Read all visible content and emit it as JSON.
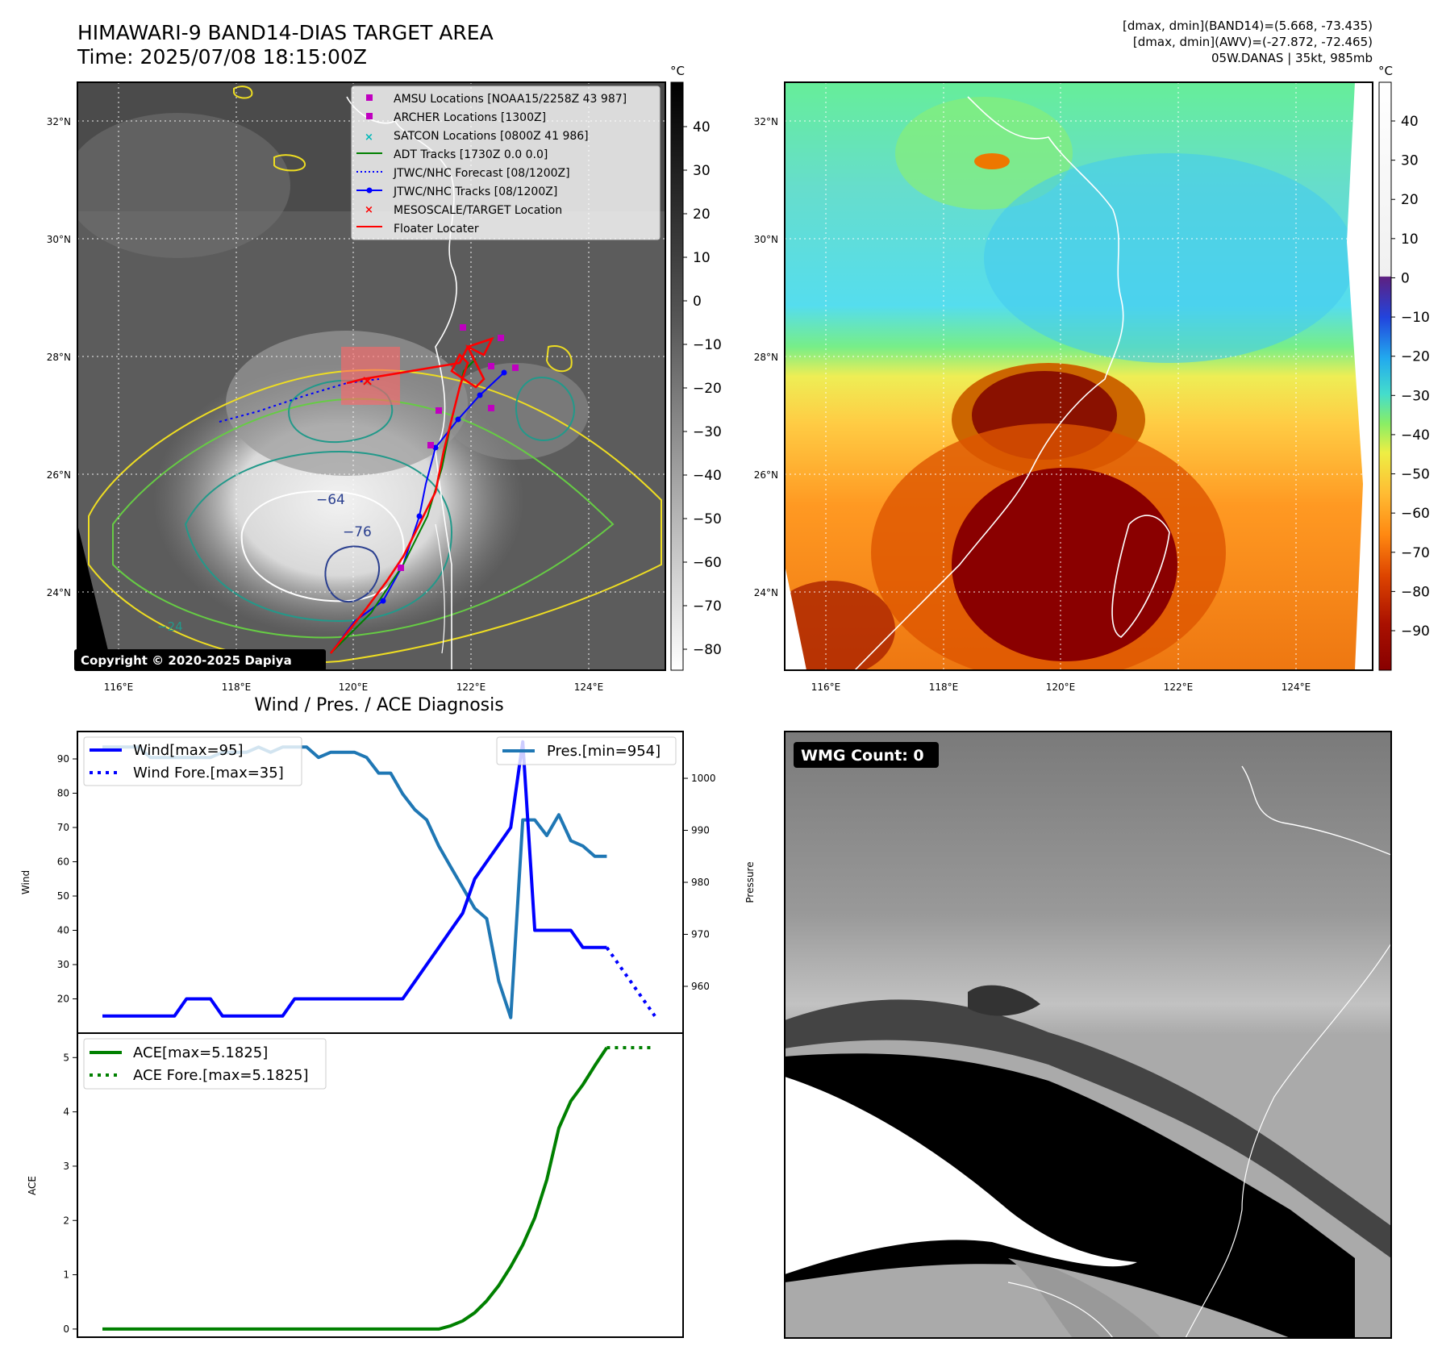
{
  "header": {
    "title_line1": "HIMAWARI-9 BAND14-DIAS TARGET AREA",
    "title_line2": "Time: 2025/07/08 18:15:00Z",
    "diag_line1": "[dmax, dmin](BAND14)=(5.668, -73.435)",
    "diag_line2": "[dmax, dmin](AWV)=(-27.872, -72.465)",
    "diag_line3": "05W.DANAS | 35kt, 985mb"
  },
  "maps": {
    "lon_ticks": [
      "116°E",
      "118°E",
      "120°E",
      "122°E",
      "124°E"
    ],
    "lat_ticks": [
      "32°N",
      "30°N",
      "28°N",
      "26°N",
      "24°N"
    ],
    "copyright": "Copyright © 2020-2025 Dapiya",
    "contour_labels": [
      "−64",
      "−76",
      "−24"
    ],
    "legend": [
      {
        "label": "AMSU Locations [NOAA15/2258Z 43 987]",
        "color": "#c000c0",
        "marker": "square"
      },
      {
        "label": "ARCHER Locations [1300Z]",
        "color": "#c000c0",
        "marker": "square"
      },
      {
        "label": "SATCON Locations [0800Z 41 986]",
        "color": "#00b8b8",
        "marker": "x"
      },
      {
        "label": "ADT Tracks [1730Z 0.0 0.0]",
        "color": "#008000",
        "marker": "line"
      },
      {
        "label": "JTWC/NHC Forecast [08/1200Z]",
        "color": "#0000ff",
        "marker": "dotted"
      },
      {
        "label": "JTWC/NHC Tracks [08/1200Z]",
        "color": "#0000ff",
        "marker": "line-dot"
      },
      {
        "label": "MESOSCALE/TARGET Location",
        "color": "#ff0000",
        "marker": "x"
      },
      {
        "label": "Floater Locater",
        "color": "#ff0000",
        "marker": "line"
      }
    ],
    "colorbar_left": {
      "unit": "°C",
      "ticks": [
        "40",
        "30",
        "20",
        "10",
        "0",
        "−10",
        "−20",
        "−30",
        "−40",
        "−50",
        "−60",
        "−70",
        "−80"
      ]
    },
    "colorbar_right": {
      "unit": "°C",
      "ticks": [
        "40",
        "30",
        "20",
        "10",
        "0",
        "−10",
        "−20",
        "−30",
        "−40",
        "−50",
        "−60",
        "−70",
        "−80",
        "−90"
      ]
    }
  },
  "wmg": {
    "label": "WMG Count: 0"
  },
  "chart_data": [
    {
      "type": "line",
      "title": "Wind / Pres. / ACE Diagnosis",
      "ylabel": "Wind",
      "ylim": [
        10,
        98
      ],
      "y_ticks": [
        "90",
        "80",
        "70",
        "60",
        "50",
        "40",
        "30",
        "20"
      ],
      "y2label": "Pressure",
      "y2lim": [
        951,
        1009
      ],
      "y2_ticks": [
        "1000",
        "990",
        "980",
        "970",
        "960"
      ],
      "series": [
        {
          "name": "Wind[max=95]",
          "axis": "left",
          "color": "#0000ff",
          "style": "solid",
          "x": [
            0,
            1,
            2,
            3,
            4,
            5,
            6,
            7,
            8,
            9,
            10,
            11,
            12,
            13,
            14,
            15,
            16,
            17,
            18,
            19,
            20,
            21,
            22,
            23,
            24,
            25,
            26,
            27,
            28,
            29,
            30,
            31,
            32,
            33,
            34,
            35,
            36,
            37,
            38,
            39,
            40,
            41,
            42
          ],
          "values": [
            15,
            15,
            15,
            15,
            15,
            15,
            15,
            20,
            20,
            20,
            15,
            15,
            15,
            15,
            15,
            15,
            20,
            20,
            20,
            20,
            20,
            20,
            20,
            20,
            20,
            20,
            25,
            30,
            35,
            40,
            45,
            55,
            60,
            65,
            70,
            95,
            40,
            40,
            40,
            40,
            35,
            35,
            35
          ]
        },
        {
          "name": "Wind Fore.[max=35]",
          "axis": "left",
          "color": "#0000ff",
          "style": "dotted",
          "x": [
            42,
            46
          ],
          "values": [
            35,
            15
          ]
        },
        {
          "name": "Pres.[min=954]",
          "axis": "right",
          "color": "#1f77b4",
          "style": "solid",
          "x": [
            0,
            1,
            2,
            3,
            4,
            5,
            6,
            7,
            8,
            9,
            10,
            11,
            12,
            13,
            14,
            15,
            16,
            17,
            18,
            19,
            20,
            21,
            22,
            23,
            24,
            25,
            26,
            27,
            28,
            29,
            30,
            31,
            32,
            33,
            34,
            35,
            36,
            37,
            38,
            39,
            40,
            41,
            42
          ],
          "values": [
            1006,
            1006,
            1006,
            1006,
            1004,
            1004,
            1004,
            1004,
            1004,
            1004,
            1005,
            1005,
            1005,
            1006,
            1005,
            1006,
            1006,
            1006,
            1004,
            1005,
            1005,
            1005,
            1004,
            1001,
            1001,
            997,
            994,
            992,
            987,
            983,
            979,
            975,
            973,
            961,
            954,
            992,
            992,
            989,
            993,
            988,
            987,
            985,
            985
          ]
        }
      ]
    },
    {
      "type": "line",
      "ylabel": "ACE",
      "ylim": [
        -0.15,
        5.45
      ],
      "y_ticks": [
        "5",
        "4",
        "3",
        "2",
        "1",
        "0"
      ],
      "series": [
        {
          "name": "ACE[max=5.1825]",
          "color": "#008000",
          "style": "solid",
          "x": [
            0,
            1,
            2,
            3,
            4,
            5,
            6,
            7,
            8,
            9,
            10,
            11,
            12,
            13,
            14,
            15,
            16,
            17,
            18,
            19,
            20,
            21,
            22,
            23,
            24,
            25,
            26,
            27,
            28,
            29,
            30,
            31,
            32,
            33,
            34,
            35,
            36,
            37,
            38,
            39,
            40,
            41,
            42
          ],
          "values": [
            0,
            0,
            0,
            0,
            0,
            0,
            0,
            0,
            0,
            0,
            0,
            0,
            0,
            0,
            0,
            0,
            0,
            0,
            0,
            0,
            0,
            0,
            0,
            0,
            0,
            0,
            0,
            0,
            0,
            0.06,
            0.15,
            0.3,
            0.52,
            0.8,
            1.15,
            1.55,
            2.05,
            2.75,
            3.7,
            4.2,
            4.5,
            4.85,
            5.1825
          ]
        },
        {
          "name": "ACE Fore.[max=5.1825]",
          "color": "#008000",
          "style": "dotted",
          "x": [
            42,
            46
          ],
          "values": [
            5.1825,
            5.1825
          ]
        }
      ]
    }
  ]
}
